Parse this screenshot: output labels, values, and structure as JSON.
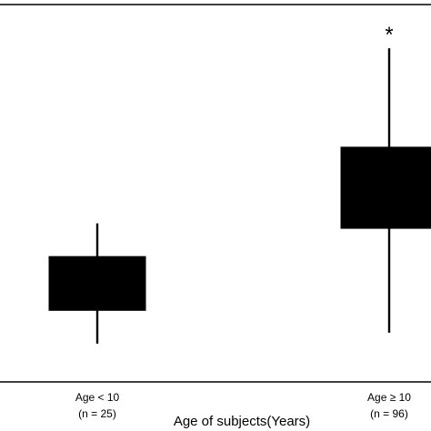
{
  "chart_data": {
    "type": "box",
    "title": "",
    "xlabel": "Age of subjects(Years)",
    "ylabel": "",
    "categories": [
      {
        "label": "Age < 10",
        "n_label": "(n = 25)"
      },
      {
        "label": "Age ≥ 10",
        "n_label": "(n = 96)"
      }
    ],
    "boxes": [
      {
        "whisker_low": 0.6,
        "q1": 1.8,
        "q3": 3.8,
        "whisker_high": 5.0
      },
      {
        "whisker_low": 1.0,
        "q1": 4.8,
        "q3": 7.8,
        "whisker_high": 11.4
      }
    ],
    "significance_marker": "*",
    "significance_category_index": 1,
    "ylim": [
      -0.8,
      13.0
    ],
    "grid": false,
    "colors": {
      "box_fill": "#000000",
      "whisker": "#000000",
      "axis": "#000000",
      "background": "#ffffff"
    }
  }
}
